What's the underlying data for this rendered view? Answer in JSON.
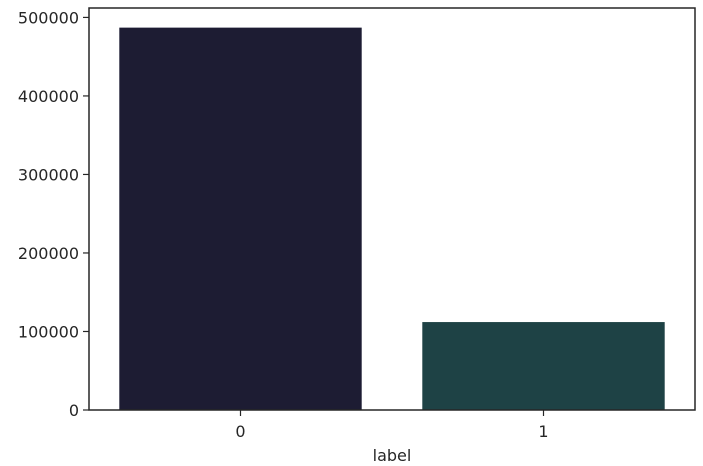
{
  "chart_data": {
    "type": "bar",
    "title": "",
    "xlabel": "label",
    "ylabel": "",
    "categories": [
      "0",
      "1"
    ],
    "values": [
      487000,
      112000
    ],
    "colors": [
      "#1d1c33",
      "#1e4245"
    ],
    "ylim": [
      0,
      512000
    ],
    "yticks": [
      0,
      100000,
      200000,
      300000,
      400000,
      500000
    ],
    "ytick_labels": [
      "0",
      "100000",
      "200000",
      "300000",
      "400000",
      "500000"
    ],
    "grid": false,
    "legend": "none"
  }
}
